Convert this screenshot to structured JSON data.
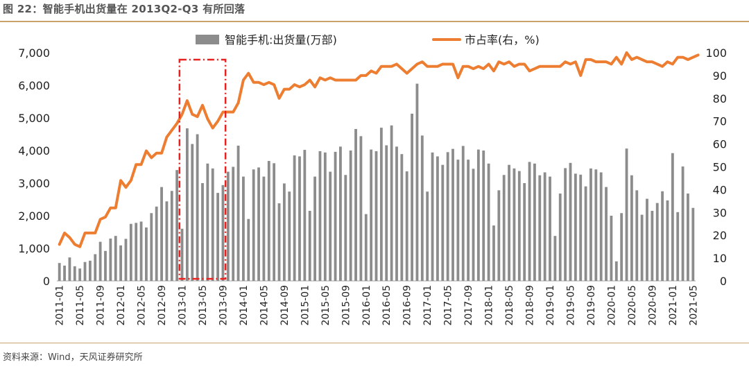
{
  "figure": {
    "title": "图 22：智能手机出货量在 2013Q2-Q3 有所回落",
    "source": "资料来源：Wind，天风证券研究所"
  },
  "colors": {
    "bars": "#8c8c8c",
    "line": "#ed7d31",
    "highlight": "#e8211f",
    "rule": "#c9a36a"
  },
  "chart_data": {
    "type": "bar+line",
    "title": "智能手机出货量在 2013Q2-Q3 有所回落",
    "x_tick_labels": [
      "2011-01",
      "2011-05",
      "2011-09",
      "2012-01",
      "2012-05",
      "2012-09",
      "2013-01",
      "2013-05",
      "2013-09",
      "2014-01",
      "2014-05",
      "2014-09",
      "2015-01",
      "2015-05",
      "2015-09",
      "2016-01",
      "2016-05",
      "2016-09",
      "2017-01",
      "2017-05",
      "2017-09",
      "2018-01",
      "2018-05",
      "2018-09",
      "2019-01",
      "2019-05",
      "2019-09",
      "2020-01",
      "2020-05",
      "2020-09",
      "2021-01",
      "2021-05"
    ],
    "x_start": "2011-01",
    "x_end": "2021-05",
    "series": [
      {
        "name": "智能手机:出货量(万部)",
        "type": "bar",
        "axis": "left",
        "values": [
          550,
          470,
          720,
          450,
          380,
          580,
          620,
          820,
          1200,
          920,
          1300,
          1380,
          1090,
          1290,
          1750,
          1780,
          1820,
          1640,
          2080,
          2280,
          2880,
          2440,
          2760,
          3400,
          1600,
          4680,
          4200,
          4500,
          3000,
          3600,
          3450,
          2700,
          2940,
          3350,
          3500,
          4150,
          3200,
          1900,
          3420,
          3480,
          3200,
          3680,
          3610,
          2380,
          2990,
          2740,
          3850,
          3820,
          4020,
          2150,
          3200,
          3980,
          3940,
          3350,
          3960,
          4120,
          3250,
          4000,
          4660,
          4440,
          2050,
          4030,
          3980,
          4700,
          4160,
          4770,
          4120,
          3890,
          3360,
          5130,
          6050,
          4460,
          2740,
          3940,
          3820,
          3560,
          3950,
          4050,
          3720,
          4140,
          3720,
          3440,
          4030,
          4000,
          3600,
          1700,
          2780,
          3250,
          3560,
          3450,
          3370,
          3000,
          3650,
          3600,
          3240,
          3330,
          3200,
          1380,
          2680,
          3460,
          3620,
          3290,
          3260,
          2900,
          3450,
          3420,
          3330,
          2880,
          2000,
          600,
          2080,
          4060,
          3240,
          2780,
          2030,
          2520,
          2150,
          2390,
          2750,
          2470,
          3920,
          2110,
          3510,
          2680,
          2240
        ]
      },
      {
        "name": "市占率(右，%)",
        "type": "line",
        "axis": "right",
        "values": [
          16,
          21,
          19,
          16,
          15,
          21,
          21,
          21,
          27,
          28,
          32,
          32,
          44,
          41,
          44,
          51,
          51,
          57,
          54,
          56,
          56,
          63,
          66,
          69,
          73,
          79,
          73,
          72,
          77,
          71,
          67,
          70,
          74,
          74,
          74,
          78,
          88,
          91,
          87,
          87,
          86,
          87,
          86,
          80,
          84,
          84,
          86,
          85,
          86,
          88,
          85,
          89,
          88,
          89,
          88,
          88,
          88,
          88,
          88,
          90,
          90,
          92,
          91,
          94,
          94,
          94,
          95,
          93,
          91,
          93,
          95,
          96,
          94,
          94,
          94,
          95,
          95,
          95,
          89,
          94,
          94,
          93,
          94,
          93,
          95,
          92,
          96,
          95,
          96,
          94,
          95,
          95,
          92,
          93,
          94,
          94,
          94,
          94,
          94,
          96,
          95,
          96,
          90,
          97,
          97,
          96,
          96,
          96,
          95,
          98,
          95,
          100,
          97,
          98,
          97,
          96,
          96,
          95,
          94,
          96,
          95,
          98,
          98,
          97,
          98,
          99
        ]
      }
    ],
    "y_left": {
      "min": 0,
      "max": 7000,
      "ticks": [
        "0",
        "1,000",
        "2,000",
        "3,000",
        "4,000",
        "5,000",
        "6,000",
        "7,000"
      ]
    },
    "y_right": {
      "min": 0,
      "max": 100,
      "ticks": [
        "0",
        "10",
        "20",
        "30",
        "40",
        "50",
        "60",
        "70",
        "80",
        "90",
        "100"
      ]
    },
    "highlight_box": {
      "from": "2013-01",
      "to": "2013-09"
    },
    "legend_position": "top-center",
    "grid": false
  }
}
